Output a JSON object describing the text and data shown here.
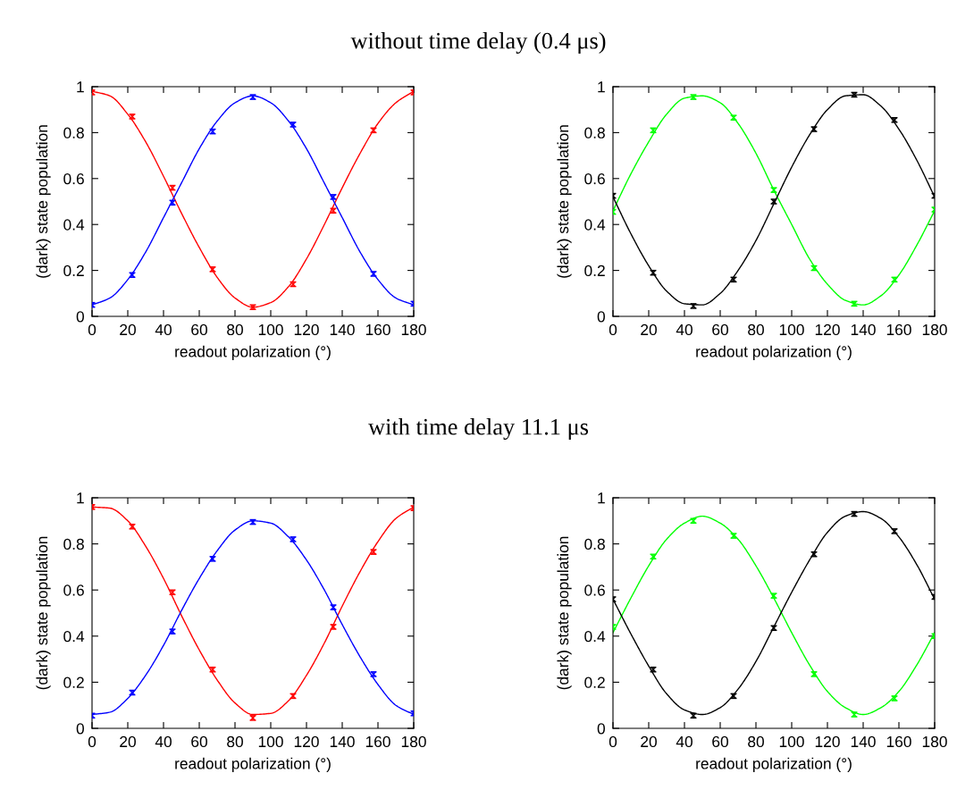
{
  "chart_data": [
    {
      "type": "scatter",
      "title": "without time delay (0.4 μs)",
      "xlabel": "readout polarization (°)",
      "ylabel": "(dark) state population",
      "x": [
        0,
        22.5,
        45,
        67.5,
        90,
        112.5,
        135,
        157.5,
        180
      ],
      "xlim": [
        0,
        180
      ],
      "ylim": [
        0,
        1
      ],
      "xticks": [
        0,
        20,
        40,
        60,
        80,
        100,
        120,
        140,
        160,
        180
      ],
      "yticks": [
        0,
        0.2,
        0.4,
        0.6,
        0.8,
        1
      ],
      "grid": false,
      "legend": false,
      "series": [
        {
          "type": "line",
          "color": "#ff0000",
          "marker": "none",
          "x": [
            0,
            10,
            20,
            30,
            40,
            50,
            60,
            70,
            80,
            90,
            100,
            110,
            120,
            130,
            140,
            150,
            160,
            170,
            180
          ],
          "values": [
            0.98,
            0.96,
            0.88,
            0.76,
            0.61,
            0.45,
            0.3,
            0.17,
            0.08,
            0.04,
            0.06,
            0.13,
            0.25,
            0.4,
            0.56,
            0.71,
            0.84,
            0.93,
            0.98
          ]
        },
        {
          "type": "line",
          "color": "#0000ff",
          "marker": "none",
          "x": [
            0,
            10,
            20,
            30,
            40,
            50,
            60,
            70,
            80,
            90,
            100,
            110,
            120,
            130,
            140,
            150,
            160,
            170,
            180
          ],
          "values": [
            0.05,
            0.08,
            0.16,
            0.28,
            0.43,
            0.58,
            0.73,
            0.85,
            0.93,
            0.96,
            0.93,
            0.85,
            0.73,
            0.58,
            0.43,
            0.28,
            0.16,
            0.08,
            0.05
          ]
        },
        {
          "color": "#ff0000",
          "marker": "cross",
          "values": [
            0.975,
            0.87,
            0.56,
            0.205,
            0.04,
            0.14,
            0.46,
            0.81,
            0.975
          ],
          "errors": [
            0.01,
            0.01,
            0.01,
            0.01,
            0.01,
            0.01,
            0.01,
            0.01,
            0.01
          ]
        },
        {
          "color": "#0000ff",
          "marker": "cross",
          "values": [
            0.05,
            0.18,
            0.495,
            0.805,
            0.955,
            0.835,
            0.52,
            0.185,
            0.055
          ],
          "errors": [
            0.01,
            0.01,
            0.01,
            0.01,
            0.01,
            0.01,
            0.01,
            0.01,
            0.01
          ]
        }
      ]
    },
    {
      "type": "scatter",
      "xlabel": "readout polarization (°)",
      "ylabel": "(dark) state population",
      "x": [
        0,
        22.5,
        45,
        67.5,
        90,
        112.5,
        135,
        157.5,
        180
      ],
      "xlim": [
        0,
        180
      ],
      "ylim": [
        0,
        1
      ],
      "xticks": [
        0,
        20,
        40,
        60,
        80,
        100,
        120,
        140,
        160,
        180
      ],
      "yticks": [
        0,
        0.2,
        0.4,
        0.6,
        0.8,
        1
      ],
      "grid": false,
      "legend": false,
      "series": [
        {
          "type": "line",
          "color": "#00ff00",
          "marker": "none",
          "x": [
            0,
            10,
            20,
            30,
            40,
            50,
            60,
            70,
            80,
            90,
            100,
            110,
            120,
            130,
            140,
            150,
            160,
            170,
            180
          ],
          "values": [
            0.46,
            0.62,
            0.76,
            0.88,
            0.95,
            0.96,
            0.93,
            0.84,
            0.71,
            0.55,
            0.4,
            0.25,
            0.14,
            0.07,
            0.05,
            0.09,
            0.18,
            0.31,
            0.46
          ]
        },
        {
          "type": "line",
          "color": "#000000",
          "marker": "none",
          "x": [
            0,
            10,
            20,
            30,
            40,
            50,
            60,
            70,
            80,
            90,
            100,
            110,
            120,
            130,
            140,
            150,
            160,
            170,
            180
          ],
          "values": [
            0.52,
            0.36,
            0.22,
            0.11,
            0.055,
            0.05,
            0.1,
            0.2,
            0.33,
            0.49,
            0.65,
            0.79,
            0.9,
            0.96,
            0.965,
            0.915,
            0.815,
            0.68,
            0.52
          ]
        },
        {
          "color": "#00ff00",
          "marker": "cross",
          "values": [
            0.455,
            0.81,
            0.955,
            0.865,
            0.55,
            0.21,
            0.055,
            0.16,
            0.465
          ],
          "errors": [
            0.01,
            0.01,
            0.01,
            0.01,
            0.01,
            0.01,
            0.01,
            0.01,
            0.01
          ]
        },
        {
          "color": "#000000",
          "marker": "cross",
          "values": [
            0.525,
            0.19,
            0.045,
            0.16,
            0.5,
            0.815,
            0.965,
            0.855,
            0.525
          ],
          "errors": [
            0.01,
            0.01,
            0.01,
            0.01,
            0.01,
            0.01,
            0.01,
            0.01,
            0.01
          ]
        }
      ]
    },
    {
      "type": "scatter",
      "title": "with time delay 11.1 μs",
      "xlabel": "readout polarization (°)",
      "ylabel": "(dark) state population",
      "x": [
        0,
        22.5,
        45,
        67.5,
        90,
        112.5,
        135,
        157.5,
        180
      ],
      "xlim": [
        0,
        180
      ],
      "ylim": [
        0,
        1
      ],
      "xticks": [
        0,
        20,
        40,
        60,
        80,
        100,
        120,
        140,
        160,
        180
      ],
      "yticks": [
        0,
        0.2,
        0.4,
        0.6,
        0.8,
        1
      ],
      "grid": false,
      "legend": false,
      "series": [
        {
          "type": "line",
          "color": "#ff0000",
          "marker": "none",
          "x": [
            0,
            10,
            20,
            30,
            40,
            50,
            60,
            70,
            80,
            90,
            100,
            110,
            120,
            130,
            140,
            150,
            160,
            170,
            180
          ],
          "values": [
            0.96,
            0.955,
            0.9,
            0.79,
            0.65,
            0.49,
            0.34,
            0.21,
            0.11,
            0.06,
            0.065,
            0.12,
            0.23,
            0.37,
            0.53,
            0.68,
            0.81,
            0.91,
            0.96
          ]
        },
        {
          "type": "line",
          "color": "#0000ff",
          "marker": "none",
          "x": [
            0,
            10,
            20,
            30,
            40,
            50,
            60,
            70,
            80,
            90,
            100,
            110,
            120,
            130,
            140,
            150,
            160,
            170,
            180
          ],
          "values": [
            0.06,
            0.07,
            0.13,
            0.23,
            0.36,
            0.51,
            0.65,
            0.77,
            0.86,
            0.9,
            0.89,
            0.83,
            0.73,
            0.6,
            0.45,
            0.31,
            0.19,
            0.1,
            0.06
          ]
        },
        {
          "color": "#ff0000",
          "marker": "cross",
          "values": [
            0.96,
            0.875,
            0.59,
            0.255,
            0.045,
            0.14,
            0.44,
            0.765,
            0.955
          ],
          "errors": [
            0.01,
            0.01,
            0.01,
            0.01,
            0.01,
            0.01,
            0.01,
            0.01,
            0.01
          ]
        },
        {
          "color": "#0000ff",
          "marker": "cross",
          "values": [
            0.055,
            0.155,
            0.42,
            0.735,
            0.895,
            0.82,
            0.525,
            0.235,
            0.065
          ],
          "errors": [
            0.01,
            0.01,
            0.01,
            0.01,
            0.01,
            0.01,
            0.01,
            0.01,
            0.01
          ]
        }
      ]
    },
    {
      "type": "scatter",
      "xlabel": "readout polarization (°)",
      "ylabel": "(dark) state population",
      "x": [
        0,
        22.5,
        45,
        67.5,
        90,
        112.5,
        135,
        157.5,
        180
      ],
      "xlim": [
        0,
        180
      ],
      "ylim": [
        0,
        1
      ],
      "xticks": [
        0,
        20,
        40,
        60,
        80,
        100,
        120,
        140,
        160,
        180
      ],
      "yticks": [
        0,
        0.2,
        0.4,
        0.6,
        0.8,
        1
      ],
      "grid": false,
      "legend": false,
      "series": [
        {
          "type": "line",
          "color": "#00ff00",
          "marker": "none",
          "x": [
            0,
            10,
            20,
            30,
            40,
            50,
            60,
            70,
            80,
            90,
            100,
            110,
            120,
            130,
            140,
            150,
            160,
            170,
            180
          ],
          "values": [
            0.415,
            0.565,
            0.705,
            0.82,
            0.89,
            0.92,
            0.89,
            0.82,
            0.705,
            0.565,
            0.415,
            0.275,
            0.16,
            0.09,
            0.06,
            0.09,
            0.16,
            0.275,
            0.415
          ]
        },
        {
          "type": "line",
          "color": "#000000",
          "marker": "none",
          "x": [
            0,
            10,
            20,
            30,
            40,
            50,
            60,
            70,
            80,
            90,
            100,
            110,
            120,
            130,
            140,
            150,
            160,
            170,
            180
          ],
          "values": [
            0.56,
            0.41,
            0.27,
            0.15,
            0.08,
            0.06,
            0.09,
            0.17,
            0.29,
            0.44,
            0.59,
            0.73,
            0.85,
            0.92,
            0.94,
            0.91,
            0.83,
            0.71,
            0.56
          ]
        },
        {
          "color": "#00ff00",
          "marker": "cross",
          "values": [
            0.44,
            0.745,
            0.9,
            0.835,
            0.575,
            0.235,
            0.06,
            0.13,
            0.4
          ],
          "errors": [
            0.01,
            0.01,
            0.01,
            0.01,
            0.01,
            0.01,
            0.01,
            0.01,
            0.01
          ]
        },
        {
          "color": "#000000",
          "marker": "cross",
          "values": [
            0.56,
            0.255,
            0.055,
            0.14,
            0.435,
            0.755,
            0.93,
            0.855,
            0.57
          ],
          "errors": [
            0.01,
            0.01,
            0.01,
            0.01,
            0.01,
            0.01,
            0.01,
            0.01,
            0.01
          ]
        }
      ]
    }
  ]
}
